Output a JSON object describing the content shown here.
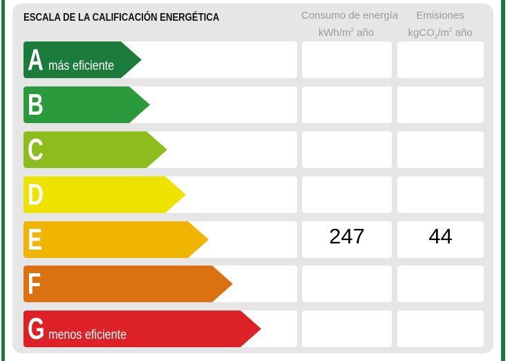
{
  "title": "ESCALA DE LA CALIFICACIÓN ENERGÉTICA",
  "columns": {
    "energy": {
      "line1": "Consumo de energía",
      "unit_a": "kWh/m",
      "unit_sup": "2",
      "unit_b": " año"
    },
    "emissions": {
      "line1": "Emisiones",
      "unit_a": "kgCO",
      "unit_sub": "2",
      "unit_b": "/m",
      "unit_sup": "2",
      "unit_c": " año"
    }
  },
  "ratings": [
    {
      "letter": "A",
      "label": "más eficiente",
      "color": "#1b7b3b",
      "energy": "",
      "emissions": ""
    },
    {
      "letter": "B",
      "label": "",
      "color": "#2b9a3c",
      "energy": "",
      "emissions": ""
    },
    {
      "letter": "C",
      "label": "",
      "color": "#8dbd1d",
      "energy": "",
      "emissions": ""
    },
    {
      "letter": "D",
      "label": "",
      "color": "#eee200",
      "energy": "",
      "emissions": ""
    },
    {
      "letter": "E",
      "label": "",
      "color": "#efb500",
      "energy": "247",
      "emissions": "44"
    },
    {
      "letter": "F",
      "label": "",
      "color": "#db7111",
      "energy": "",
      "emissions": ""
    },
    {
      "letter": "G",
      "label": "menos eficiente",
      "color": "#dc2127",
      "energy": "",
      "emissions": ""
    }
  ]
}
